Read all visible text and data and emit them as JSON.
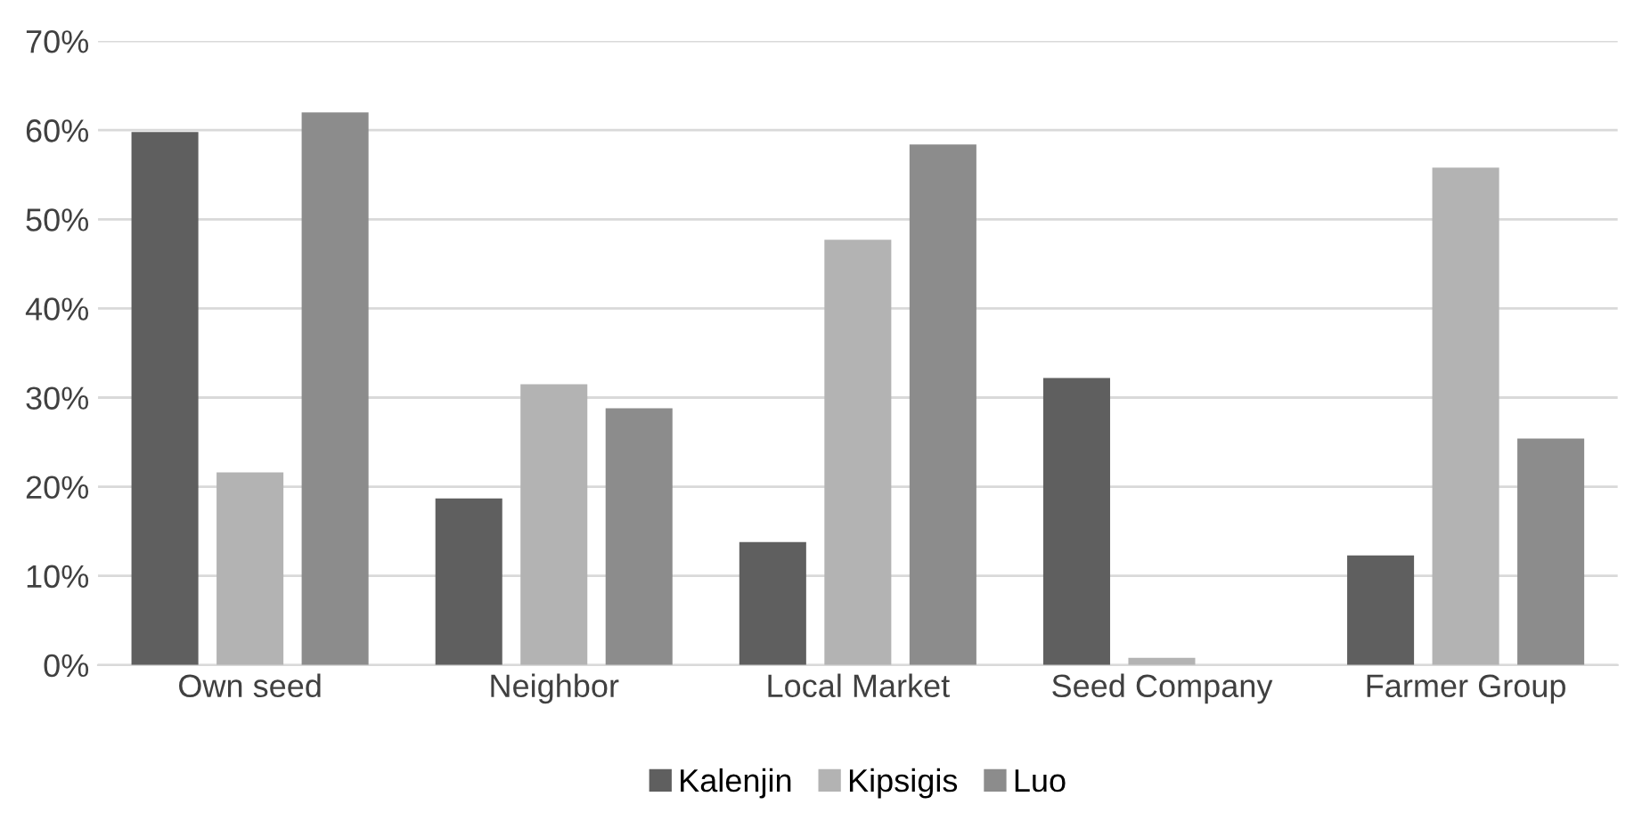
{
  "chart_data": {
    "type": "bar",
    "categories": [
      "Own seed",
      "Neighbor",
      "Local Market",
      "Seed Company",
      "Farmer Group"
    ],
    "series": [
      {
        "name": "Kalenjin",
        "color": "#5f5f5f",
        "values": [
          59.8,
          18.7,
          13.8,
          32.2,
          12.3
        ]
      },
      {
        "name": "Kipsigis",
        "color": "#b3b3b3",
        "values": [
          21.6,
          31.5,
          47.7,
          0.8,
          55.8
        ]
      },
      {
        "name": "Luo",
        "color": "#8c8c8c",
        "values": [
          62,
          28.8,
          58.4,
          0,
          25.4
        ]
      }
    ],
    "ylim": [
      0,
      70
    ],
    "yticks": [
      {
        "value": 0,
        "label": "0%"
      },
      {
        "value": 10,
        "label": "10%"
      },
      {
        "value": 20,
        "label": "20%"
      },
      {
        "value": 30,
        "label": "30%"
      },
      {
        "value": 40,
        "label": "40%"
      },
      {
        "value": 50,
        "label": "50%"
      },
      {
        "value": 60,
        "label": "60%"
      },
      {
        "value": 70,
        "label": "70%"
      }
    ],
    "grid": "y",
    "legend": "bottom"
  }
}
